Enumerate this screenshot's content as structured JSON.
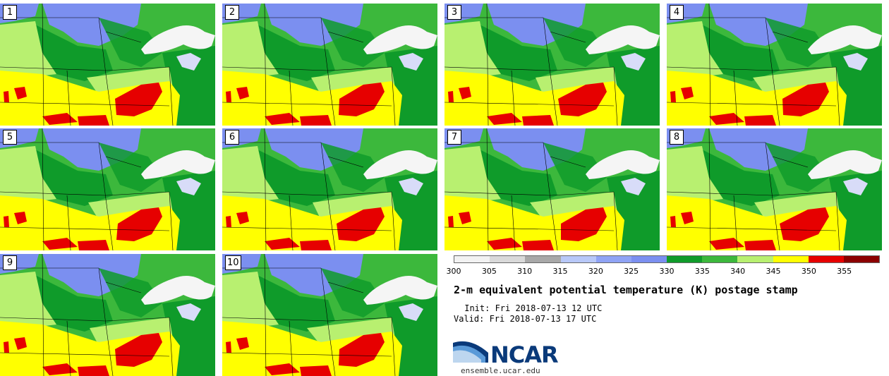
{
  "panels": [
    {
      "label": "1"
    },
    {
      "label": "2"
    },
    {
      "label": "3"
    },
    {
      "label": "4"
    },
    {
      "label": "5"
    },
    {
      "label": "6"
    },
    {
      "label": "7"
    },
    {
      "label": "8"
    },
    {
      "label": "9"
    },
    {
      "label": "10"
    }
  ],
  "colorbar": {
    "colors": [
      "#f2f2f2",
      "#d9d9d9",
      "#a8a8a8",
      "#b8c8f8",
      "#8fa3f5",
      "#7b8ff0",
      "#0f9b2a",
      "#3cb83c",
      "#b8f070",
      "#ffff00",
      "#e60000",
      "#8b0000"
    ],
    "ticks": [
      "300",
      "305",
      "310",
      "315",
      "320",
      "325",
      "330",
      "335",
      "340",
      "345",
      "350",
      "355"
    ]
  },
  "title": "2-m equivalent potential temperature (K) postage stamp",
  "init": " Init: Fri 2018-07-13 12 UTC",
  "valid": "Valid: Fri 2018-07-13 17 UTC",
  "logo": {
    "text": "NCAR",
    "site": "ensemble.ucar.edu"
  },
  "map_colors": {
    "purple_zone": "#7b8ff0",
    "dark_green": "#0f9b2a",
    "mid_green": "#3cb83c",
    "light_green": "#b8f070",
    "yellow": "#ffff00",
    "red": "#e60000",
    "lake": "#f5f5f5"
  }
}
